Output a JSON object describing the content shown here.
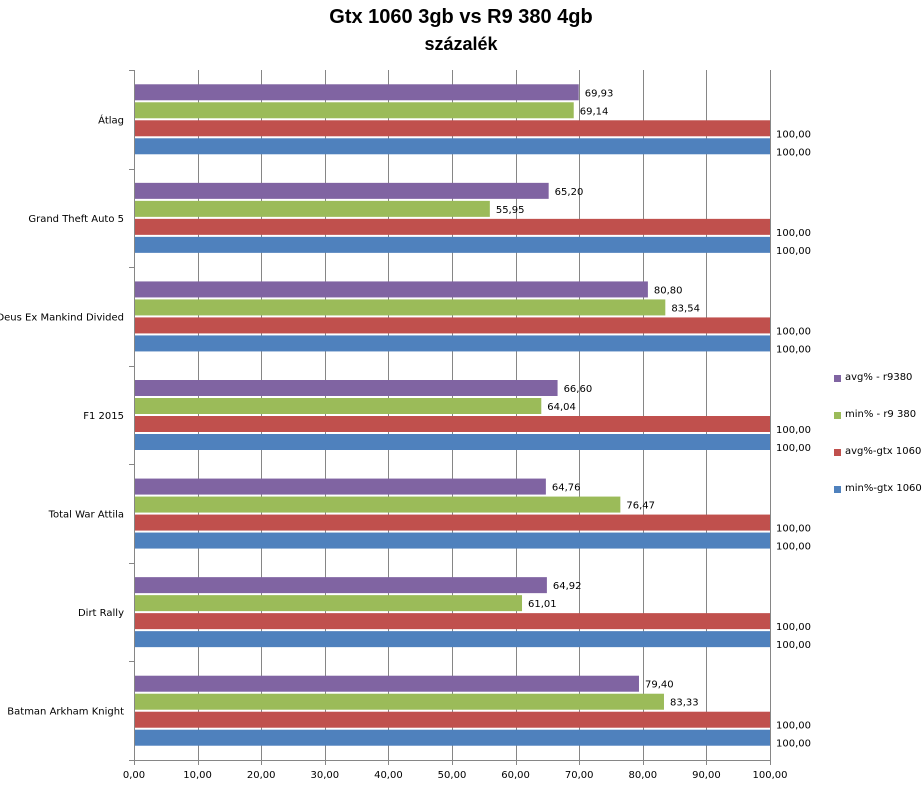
{
  "chart_data": {
    "type": "bar",
    "orientation": "horizontal",
    "title": "Gtx 1060 3gb vs R9 380 4gb",
    "subtitle": "százalék",
    "categories": [
      "Átlag",
      "Grand Theft Auto 5",
      "Deus Ex Mankind Divided",
      "F1 2015",
      "Total War Attila",
      "Dirt Rally",
      "Batman Arkham Knight"
    ],
    "series": [
      {
        "name": "avg% - r9380",
        "color": "#8064A2",
        "values": [
          69.93,
          65.2,
          80.8,
          66.6,
          64.76,
          64.92,
          79.4
        ],
        "labels": [
          "69,93",
          "65,20",
          "80,80",
          "66,60",
          "64,76",
          "64,92",
          "79,40"
        ]
      },
      {
        "name": "min% - r9 380",
        "color": "#9BBB59",
        "values": [
          69.14,
          55.95,
          83.54,
          64.04,
          76.47,
          61.01,
          83.33
        ],
        "labels": [
          "69,14",
          "55,95",
          "83,54",
          "64,04",
          "76,47",
          "61,01",
          "83,33"
        ]
      },
      {
        "name": "avg%-gtx 1060",
        "color": "#C0504D",
        "values": [
          100,
          100,
          100,
          100,
          100,
          100,
          100
        ],
        "labels": [
          "100,00",
          "100,00",
          "100,00",
          "100,00",
          "100,00",
          "100,00",
          "100,00"
        ]
      },
      {
        "name": "min%-gtx 1060",
        "color": "#4F81BD",
        "values": [
          100,
          100,
          100,
          100,
          100,
          100,
          100
        ],
        "labels": [
          "100,00",
          "100,00",
          "100,00",
          "100,00",
          "100,00",
          "100,00",
          "100,00"
        ]
      }
    ],
    "xlim": [
      0,
      100
    ],
    "xticks": [
      "0,00",
      "10,00",
      "20,00",
      "30,00",
      "40,00",
      "50,00",
      "60,00",
      "70,00",
      "80,00",
      "90,00",
      "100,00"
    ],
    "grid": true,
    "legend_position": "right"
  }
}
